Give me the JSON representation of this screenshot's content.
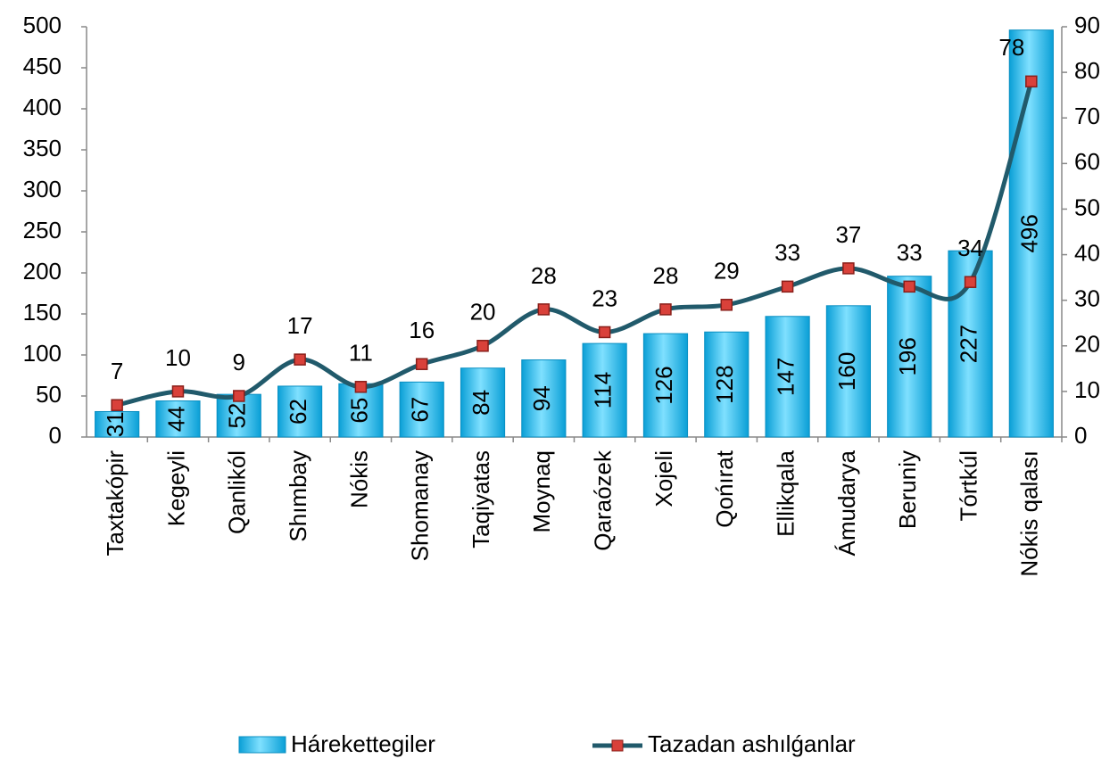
{
  "chart_data": {
    "type": "bar",
    "categories": [
      "Taxtakópir",
      "Kegeyli",
      "Qanlikól",
      "Shımbay",
      "Nókis",
      "Shomanay",
      "Taqiyatas",
      "Moynaq",
      "Qaraózek",
      "Xojeli",
      "Qońırat",
      "Ellikqala",
      "Ámudarya",
      "Beruniy",
      "Tórtkúl",
      "Nókis qalası"
    ],
    "series": [
      {
        "name": "Hárekettegiler",
        "color": "#19b6ea",
        "values": [
          31,
          44,
          52,
          62,
          65,
          67,
          84,
          94,
          114,
          126,
          128,
          147,
          160,
          196,
          227,
          496
        ]
      },
      {
        "name": "Tazadan ashılǵanlar",
        "color": "#215a6b",
        "marker_color": "#d9413a",
        "type": "line",
        "axis": "y2",
        "values": [
          7,
          10,
          9,
          17,
          11,
          16,
          20,
          28,
          23,
          28,
          29,
          33,
          37,
          33,
          34,
          78
        ]
      }
    ],
    "ylim": [
      0,
      500
    ],
    "yticks": [
      0,
      50,
      100,
      150,
      200,
      250,
      300,
      350,
      400,
      450,
      500
    ],
    "y2lim": [
      0,
      90
    ],
    "y2ticks": [
      0,
      10,
      20,
      30,
      40,
      50,
      60,
      70,
      80,
      90
    ],
    "grid": false,
    "legend": "bottom"
  }
}
